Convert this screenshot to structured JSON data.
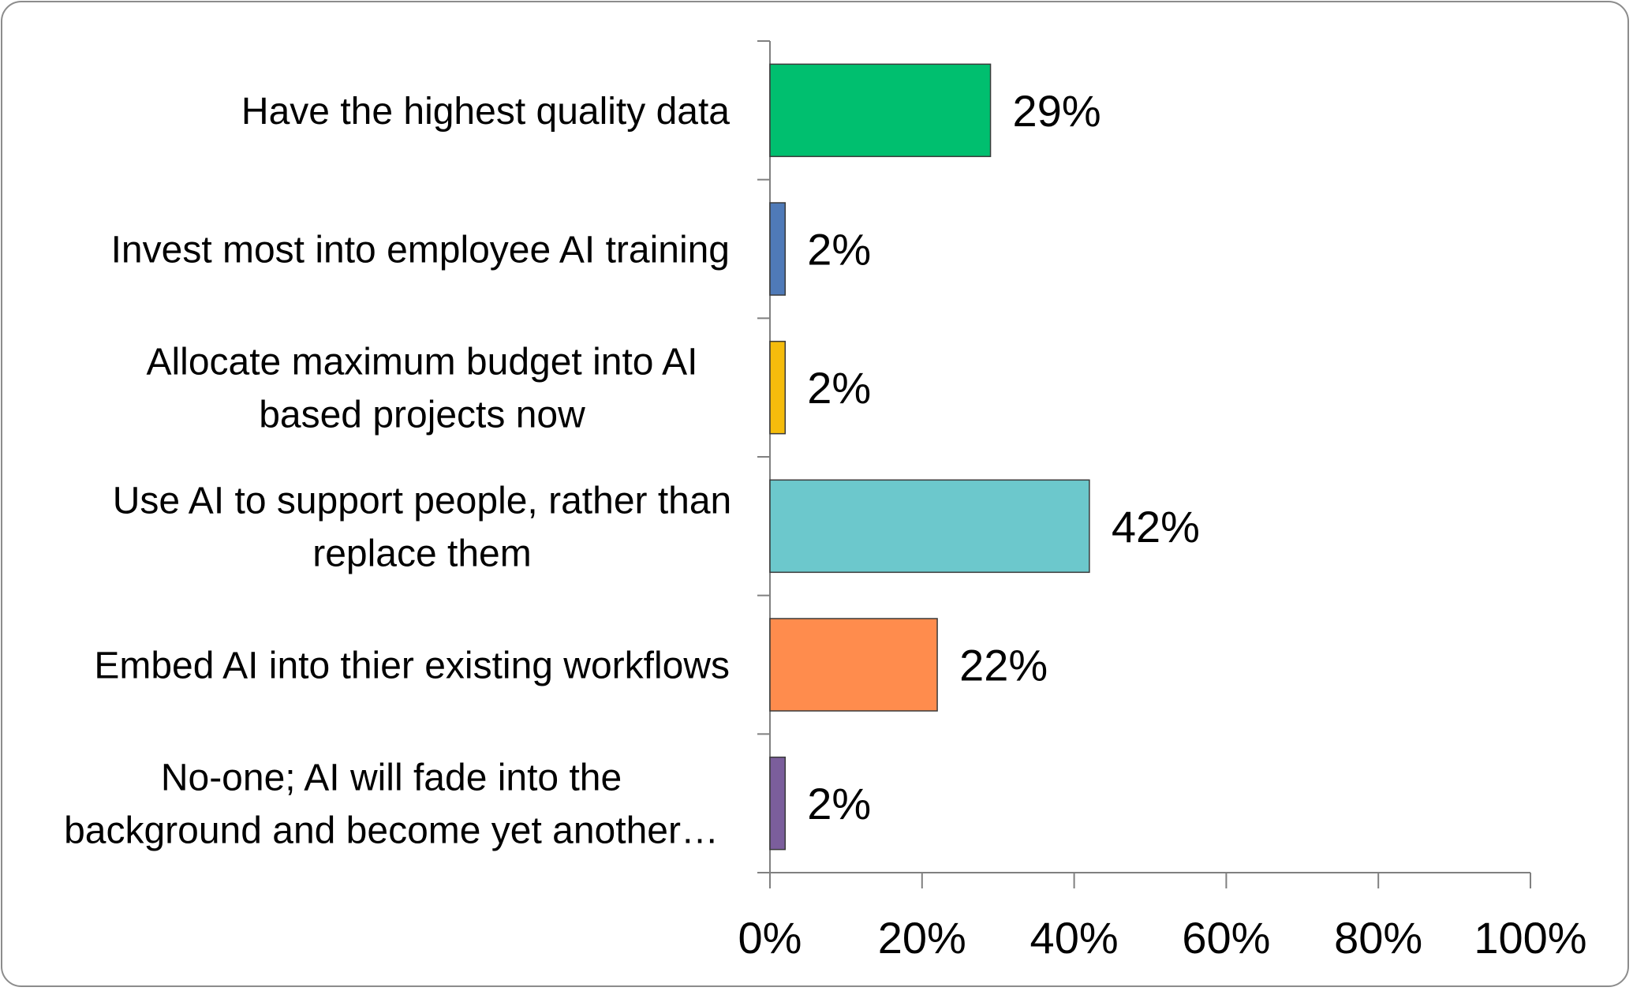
{
  "chart_data": {
    "type": "bar",
    "orientation": "horizontal",
    "categories": [
      "Have the highest quality data",
      "Invest most into employee AI training",
      "Allocate maximum budget into AI based projects now",
      "Use AI to support people, rather than replace them",
      "Embed AI into thier existing workflows",
      "No-one; AI will fade into the background and become yet another…"
    ],
    "category_lines": [
      [
        "Have the highest quality data"
      ],
      [
        "Invest most into employee AI training"
      ],
      [
        "Allocate maximum budget into AI",
        "based projects now"
      ],
      [
        "Use AI to support people, rather than",
        "replace them"
      ],
      [
        "Embed AI into thier existing workflows"
      ],
      [
        "No-one; AI will fade into the",
        "background and become yet another…"
      ]
    ],
    "values": [
      29,
      2,
      2,
      42,
      22,
      2
    ],
    "data_labels": [
      "29%",
      "2%",
      "2%",
      "42%",
      "22%",
      "2%"
    ],
    "bar_colors": [
      "#00bf6f",
      "#4f7ab8",
      "#f5bc0c",
      "#6cc8cc",
      "#ff8c4d",
      "#7b5e9c"
    ],
    "x_ticks": [
      0,
      20,
      40,
      60,
      80,
      100
    ],
    "x_tick_labels": [
      "0%",
      "20%",
      "40%",
      "60%",
      "80%",
      "100%"
    ],
    "xlim": [
      0,
      100
    ],
    "title": "",
    "xlabel": "",
    "ylabel": "",
    "grid": false,
    "legend": "none"
  }
}
